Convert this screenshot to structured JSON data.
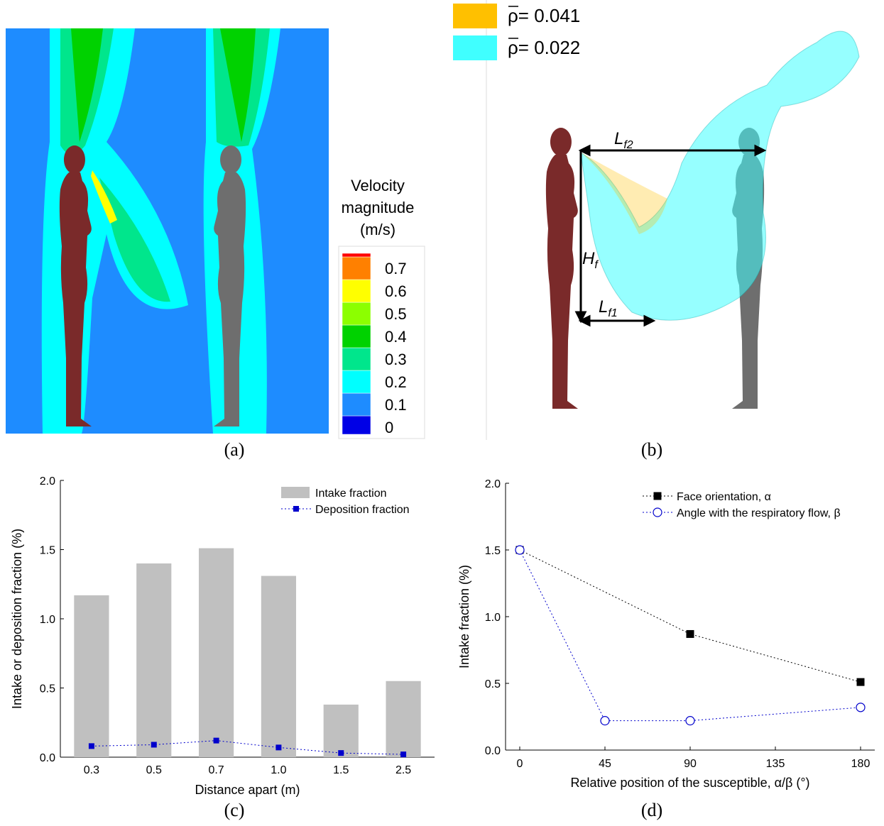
{
  "panels": [
    {
      "label": "(a)",
      "colorbar": {
        "title": [
          "Velocity",
          "magnitude",
          "(m/s)"
        ],
        "ticks": [
          0,
          0.1,
          0.2,
          0.3,
          0.4,
          0.5,
          0.6,
          0.7
        ],
        "colors": [
          "#0000e6",
          "#1e8cff",
          "#00ffff",
          "#00e68c",
          "#00d200",
          "#8cff00",
          "#ffff00",
          "#ff8000",
          "#ff0000"
        ]
      }
    },
    {
      "label": "(b)",
      "legend": [
        {
          "label": "ρ= 0.041",
          "color": "#ffc000"
        },
        {
          "label": "ρ= 0.022",
          "color": "#40ffff"
        }
      ],
      "annotations": [
        {
          "main": "L",
          "sub": "f2"
        },
        {
          "main": "H",
          "sub": "f"
        },
        {
          "main": "L",
          "sub": "f1"
        }
      ]
    },
    {
      "label": "(c)"
    },
    {
      "label": "(d)"
    }
  ],
  "chart_data": [
    {
      "type": "bar",
      "xlabel": "Distance apart (m)",
      "ylabel": "Intake or deposition fraction (%)",
      "categories": [
        "0.3",
        "0.5",
        "0.7",
        "1.0",
        "1.5",
        "2.5"
      ],
      "series": [
        {
          "name": "Intake fraction",
          "type": "bar",
          "color": "#c0c0c0",
          "values": [
            1.17,
            1.4,
            1.51,
            1.31,
            0.38,
            0.55
          ]
        },
        {
          "name": "Deposition fraction",
          "type": "line",
          "marker": "square",
          "color": "#0000cc",
          "values": [
            0.08,
            0.09,
            0.12,
            0.07,
            0.03,
            0.02
          ]
        }
      ],
      "ylim": [
        0,
        2
      ],
      "yticks": [
        {
          "value": 0,
          "label": "0.0"
        },
        {
          "value": 0.5,
          "label": "0.5"
        },
        {
          "value": 1,
          "label": "1.0"
        },
        {
          "value": 1.5,
          "label": "1.5"
        },
        {
          "value": 2,
          "label": "2.0"
        }
      ],
      "legend": "upper right"
    },
    {
      "type": "line",
      "xlabel": "Relative position of the susceptible, α/β (°)",
      "ylabel": "Intake fraction (%)",
      "series": [
        {
          "name": "Face orientation, α",
          "marker": "square",
          "color": "#000000",
          "x": [
            0,
            90,
            180
          ],
          "values": [
            1.5,
            0.87,
            0.51
          ]
        },
        {
          "name": "Angle with the respiratory flow, β",
          "marker": "circle",
          "color": "#0000cc",
          "x": [
            0,
            45,
            90,
            180
          ],
          "values": [
            1.5,
            0.22,
            0.22,
            0.32
          ]
        }
      ],
      "xlim": [
        -7.5,
        187.5
      ],
      "xticks": [
        0,
        45,
        90,
        135,
        180
      ],
      "ylim": [
        0,
        2
      ],
      "yticks": [
        {
          "value": 0,
          "label": "0.0"
        },
        {
          "value": 0.5,
          "label": "0.5"
        },
        {
          "value": 1,
          "label": "1.0"
        },
        {
          "value": 1.5,
          "label": "1.5"
        },
        {
          "value": 2,
          "label": "2.0"
        }
      ],
      "legend": "upper right"
    }
  ]
}
